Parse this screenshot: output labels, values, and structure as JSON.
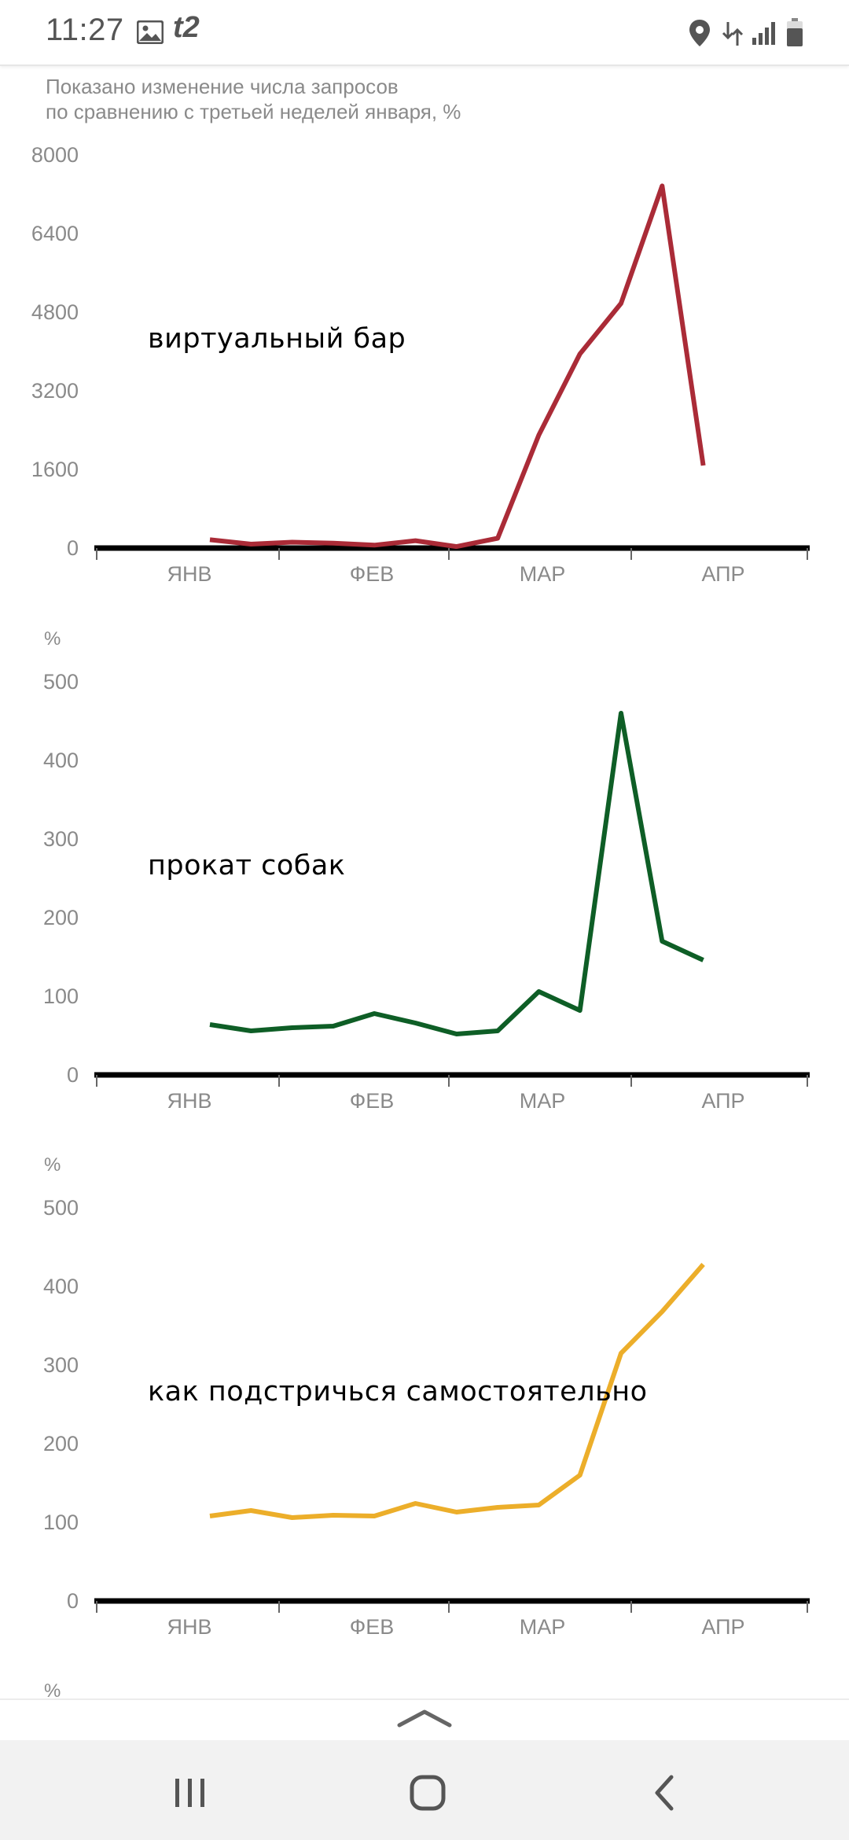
{
  "status_bar": {
    "time": "11:27",
    "carrier": "t2",
    "icons": [
      "image-icon",
      "location-icon",
      "data-transfer-icon",
      "signal-icon",
      "battery-icon"
    ]
  },
  "subtitle": {
    "line1": "Показано изменение числа запросов",
    "line2": "по сравнению с третьей неделей января, %"
  },
  "chart_data": [
    {
      "type": "line",
      "label": "виртуальный бар",
      "unit_label": "",
      "color": "#aa2b37",
      "x_ticks": [
        "ЯНВ",
        "ФЕВ",
        "МАР",
        "АПР"
      ],
      "y_ticks": [
        0,
        1600,
        3200,
        4800,
        6400,
        8000
      ],
      "ylim": [
        0,
        8000
      ],
      "values": [
        170,
        80,
        120,
        100,
        60,
        150,
        30,
        200,
        2300,
        3950,
        4980,
        7370,
        1680
      ]
    },
    {
      "type": "line",
      "label": "прокат собак",
      "unit_label": "%",
      "color": "#0e5e26",
      "x_ticks": [
        "ЯНВ",
        "ФЕВ",
        "МАР",
        "АПР"
      ],
      "y_ticks": [
        0,
        100,
        200,
        300,
        400,
        500
      ],
      "ylim": [
        0,
        500
      ],
      "values": [
        64,
        56,
        60,
        62,
        78,
        66,
        52,
        56,
        106,
        82,
        460,
        170,
        146
      ]
    },
    {
      "type": "line",
      "label": "как подстричься самостоятельно",
      "unit_label": "%",
      "color": "#ecae2a",
      "x_ticks": [
        "ЯНВ",
        "ФЕВ",
        "МАР",
        "АПР"
      ],
      "y_ticks": [
        0,
        100,
        200,
        300,
        400,
        500
      ],
      "ylim": [
        0,
        500
      ],
      "values": [
        108,
        115,
        106,
        109,
        108,
        124,
        113,
        119,
        122,
        160,
        315,
        368,
        428
      ]
    }
  ],
  "footer": {
    "next_unit_label": "%"
  },
  "nav": {
    "buttons": [
      "recent-apps-icon",
      "home-icon",
      "back-icon"
    ]
  }
}
